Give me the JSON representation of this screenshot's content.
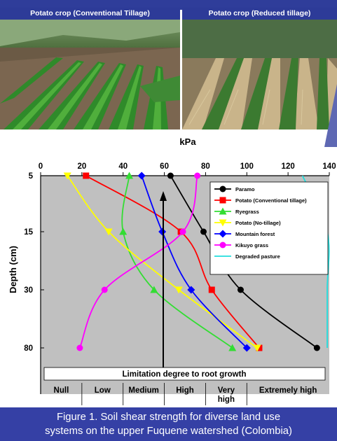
{
  "photos": [
    {
      "label": "Potato crop (Conventional Tillage)"
    },
    {
      "label": "Potato crop (Reduced tillage)"
    }
  ],
  "chart_data": {
    "type": "line",
    "title": "kPa",
    "ylabel": "Depth (cm)",
    "x_ticks": [
      0,
      20,
      40,
      60,
      80,
      100,
      120,
      140
    ],
    "xlim": [
      0,
      140
    ],
    "y_categories": [
      "5",
      "15",
      "30",
      "80"
    ],
    "grid": false,
    "legend_position": "top-right",
    "series": [
      {
        "name": "Paramo",
        "color": "#000000",
        "marker": "circle",
        "values": [
          63,
          79,
          97,
          134
        ]
      },
      {
        "name": "Potato (Conventional tillage)",
        "color": "#ff0000",
        "marker": "square",
        "values": [
          22,
          68,
          83,
          106
        ]
      },
      {
        "name": "Ryegrass",
        "color": "#33dd33",
        "marker": "triangle-up",
        "values": [
          43,
          40,
          55,
          93
        ]
      },
      {
        "name": "Potato (No-tillage)",
        "color": "#ffff00",
        "marker": "triangle-down",
        "values": [
          13,
          33,
          67,
          105
        ]
      },
      {
        "name": "Mountain forest",
        "color": "#0000ff",
        "marker": "diamond",
        "values": [
          49,
          59,
          73,
          100
        ]
      },
      {
        "name": "Kikuyo grass",
        "color": "#ff00ff",
        "marker": "circle",
        "values": [
          76,
          69,
          31,
          19
        ]
      },
      {
        "name": "Degraded pasture",
        "color": "#22dddd",
        "marker": "none",
        "values": [
          127,
          139,
          139,
          139
        ]
      }
    ],
    "annotation": {
      "title": "Limitation degree to root growth",
      "categories": [
        "Null",
        "Low",
        "Medium",
        "High",
        "Very high",
        "Extremely high"
      ],
      "boundaries": [
        0,
        20,
        40,
        60,
        80,
        100,
        140
      ]
    }
  },
  "caption": {
    "line1": "Figure 1. Soil shear strength for diverse land use",
    "line2": "systems on the upper Fuquene watershed (Colombia)"
  }
}
